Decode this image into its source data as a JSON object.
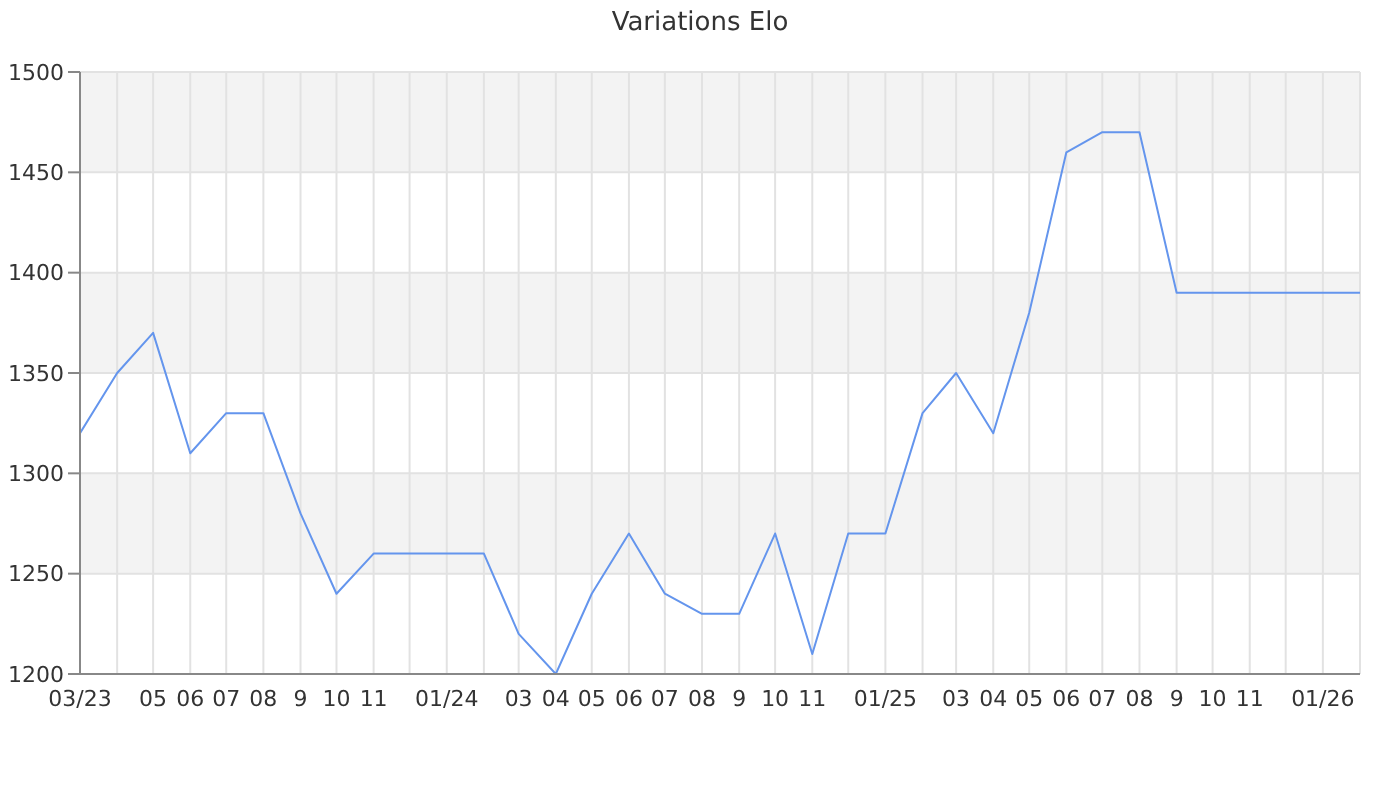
{
  "chart_data": {
    "type": "line",
    "title": "Variations Elo",
    "x": [
      "2023-03",
      "2023-04",
      "2023-05",
      "2023-06",
      "2023-07",
      "2023-08",
      "2023-09",
      "2023-10",
      "2023-11",
      "2023-12",
      "2024-01",
      "2024-02",
      "2024-03",
      "2024-04",
      "2024-05",
      "2024-06",
      "2024-07",
      "2024-08",
      "2024-09",
      "2024-10",
      "2024-11",
      "2024-12",
      "2025-01",
      "2025-02",
      "2025-03",
      "2025-04",
      "2025-05",
      "2025-06",
      "2025-07",
      "2025-08",
      "2025-09",
      "2025-10",
      "2025-11",
      "2025-12",
      "2026-01",
      "2026-02"
    ],
    "series": [
      {
        "color": "#6495ed",
        "values": [
          1320,
          1350,
          1370,
          1310,
          1330,
          1330,
          1280,
          1240,
          1260,
          1260,
          1260,
          1260,
          1220,
          1200,
          1240,
          1270,
          1240,
          1230,
          1230,
          1270,
          1210,
          1270,
          1270,
          1330,
          1350,
          1320,
          1380,
          1460,
          1470,
          1470,
          1390,
          1390,
          1390,
          1390,
          1390,
          1390
        ]
      }
    ],
    "xlim": [
      "2023-03",
      "2026-02"
    ],
    "xticks": [
      {
        "value": "2023-03",
        "label": "03/23"
      },
      {
        "value": "2023-04",
        "label": null
      },
      {
        "value": "2023-05",
        "label": "05"
      },
      {
        "value": "2023-06",
        "label": "06"
      },
      {
        "value": "2023-07",
        "label": "07"
      },
      {
        "value": "2023-08",
        "label": "08"
      },
      {
        "value": "2023-09",
        "label": "9"
      },
      {
        "value": "2023-10",
        "label": "10"
      },
      {
        "value": "2023-11",
        "label": "11"
      },
      {
        "value": "2023-12",
        "label": null
      },
      {
        "value": "2024-01",
        "label": "01/24"
      },
      {
        "value": "2024-02",
        "label": null
      },
      {
        "value": "2024-03",
        "label": "03"
      },
      {
        "value": "2024-04",
        "label": "04"
      },
      {
        "value": "2024-05",
        "label": "05"
      },
      {
        "value": "2024-06",
        "label": "06"
      },
      {
        "value": "2024-07",
        "label": "07"
      },
      {
        "value": "2024-08",
        "label": "08"
      },
      {
        "value": "2024-09",
        "label": "9"
      },
      {
        "value": "2024-10",
        "label": "10"
      },
      {
        "value": "2024-11",
        "label": "11"
      },
      {
        "value": "2024-12",
        "label": null
      },
      {
        "value": "2025-01",
        "label": "01/25"
      },
      {
        "value": "2025-02",
        "label": null
      },
      {
        "value": "2025-03",
        "label": "03"
      },
      {
        "value": "2025-04",
        "label": "04"
      },
      {
        "value": "2025-05",
        "label": "05"
      },
      {
        "value": "2025-06",
        "label": "06"
      },
      {
        "value": "2025-07",
        "label": "07"
      },
      {
        "value": "2025-08",
        "label": "08"
      },
      {
        "value": "2025-09",
        "label": "9"
      },
      {
        "value": "2025-10",
        "label": "10"
      },
      {
        "value": "2025-11",
        "label": "11"
      },
      {
        "value": "2025-12",
        "label": null
      },
      {
        "value": "2026-01",
        "label": "01/26"
      },
      {
        "value": "2026-02",
        "label": null
      }
    ],
    "ylim": [
      1200,
      1500
    ],
    "yticks": [
      1200,
      1250,
      1300,
      1350,
      1400,
      1450,
      1500
    ],
    "grid": true,
    "legend": false,
    "marker": "none",
    "line_style": "solid"
  }
}
